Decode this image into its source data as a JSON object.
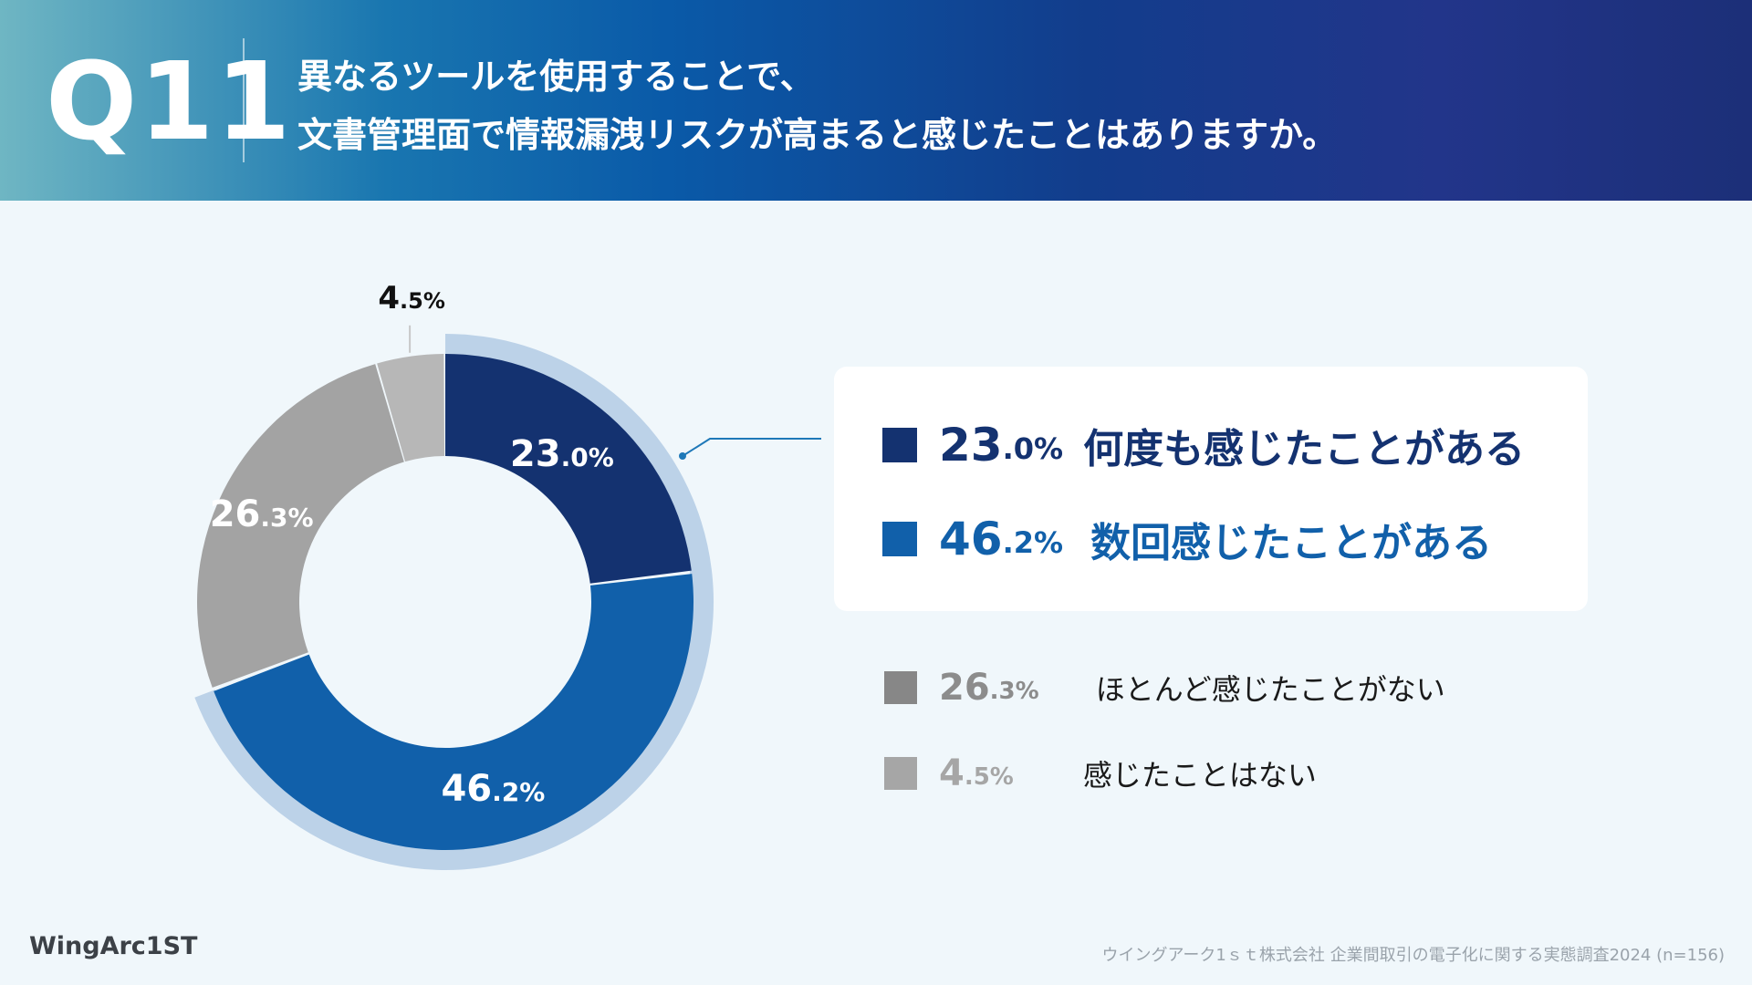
{
  "header": {
    "qnum": "Q11",
    "line1": "異なるツールを使用することで、",
    "line2": "文書管理面で情報漏洩リスクが高まると感じたことはありますか。"
  },
  "chart_data": {
    "type": "pie",
    "title": "",
    "categories": [
      "何度も感じたことがある",
      "数回感じたことがある",
      "ほとんど感じたことがない",
      "感じたことはない"
    ],
    "values": [
      23.0,
      46.2,
      26.3,
      4.5
    ],
    "labels": [
      {
        "num": "23",
        "pct": ".0%"
      },
      {
        "num": "46",
        "pct": ".2%"
      },
      {
        "num": "26",
        "pct": ".3%"
      },
      {
        "num": "4",
        "pct": ".5%"
      }
    ],
    "colors": [
      "#143270",
      "#1160aa",
      "#a3a3a3",
      "#b7b7b7"
    ],
    "highlight_color": "#bcd2e8",
    "legend": "right"
  },
  "legend": [
    {
      "num": "23",
      "pct": ".0%",
      "label": "何度も感じたことがある",
      "color": "#143270",
      "text_color": "#143270"
    },
    {
      "num": "46",
      "pct": ".2%",
      "label": "数回感じたことがある",
      "color": "#1160aa",
      "text_color": "#1160aa"
    },
    {
      "num": "26",
      "pct": ".3%",
      "label": "ほとんど感じたことがない",
      "color": "#878787",
      "text_color": "#8c8c8c"
    },
    {
      "num": "4",
      "pct": ".5%",
      "label": "感じたことはない",
      "color": "#a6a6a6",
      "text_color": "#a6a6a6"
    }
  ],
  "footer": {
    "logo": "WingArc1ST",
    "source": "ウイングアーク1ｓｔ株式会社 企業間取引の電子化に関する実態調査2024 (n=156)"
  }
}
